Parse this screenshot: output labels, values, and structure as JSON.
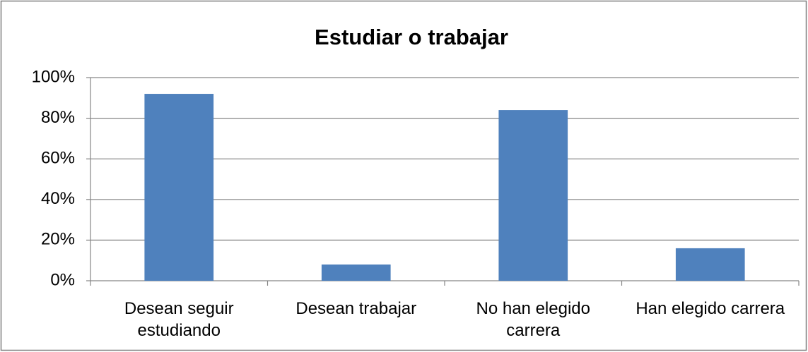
{
  "chart_data": {
    "type": "bar",
    "title": "Estudiar o trabajar",
    "categories": [
      "Desean seguir estudiando",
      "Desean trabajar",
      "No han elegido carrera",
      "Han elegido carrera"
    ],
    "values": [
      92,
      8,
      84,
      16
    ],
    "color": "#4f81bd",
    "ylim": [
      0,
      100
    ],
    "yticks": [
      {
        "value": 0,
        "label": "0%"
      },
      {
        "value": 20,
        "label": "20%"
      },
      {
        "value": 40,
        "label": "40%"
      },
      {
        "value": 60,
        "label": "60%"
      },
      {
        "value": 80,
        "label": "80%"
      },
      {
        "value": 100,
        "label": "100%"
      }
    ],
    "grid": true
  }
}
